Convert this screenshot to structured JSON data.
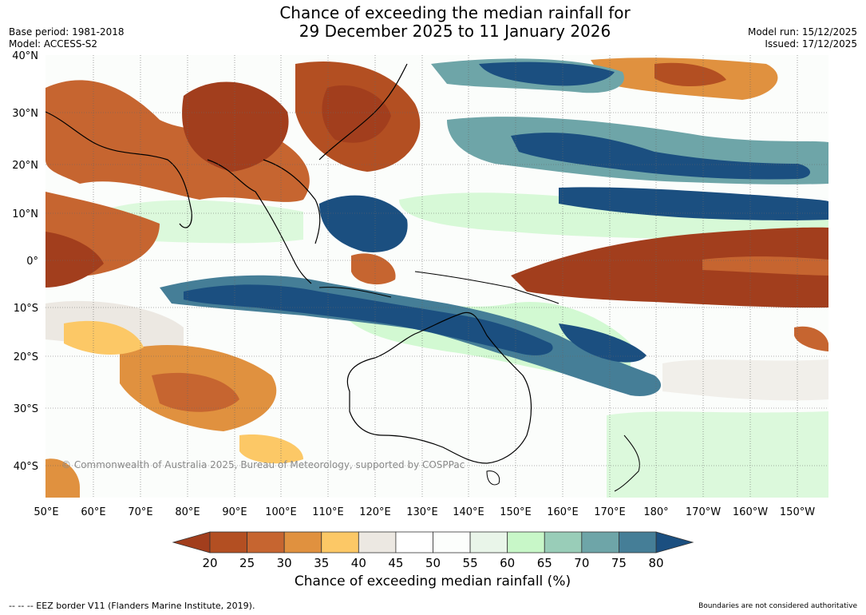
{
  "title_line1": "Chance of exceeding the median rainfall for",
  "title_line2": "29 December 2025 to 11 January 2026",
  "base_period": "Base period: 1981-2018",
  "model": "Model: ACCESS-S2",
  "model_run": "Model run: 15/12/2025",
  "issued": "Issued: 17/12/2025",
  "lat_labels": [
    "40°N",
    "30°N",
    "20°N",
    "10°N",
    "0°",
    "10°S",
    "20°S",
    "30°S",
    "40°S"
  ],
  "lon_labels": [
    "50°E",
    "60°E",
    "70°E",
    "80°E",
    "90°E",
    "100°E",
    "110°E",
    "120°E",
    "130°E",
    "140°E",
    "150°E",
    "160°E",
    "170°E",
    "180°",
    "170°W",
    "160°W",
    "150°W"
  ],
  "copyright": "© Commonwealth of Australia 2025, Bureau of Meteorology, supported by COSPPac",
  "colorbar": {
    "ticks": [
      "20",
      "25",
      "30",
      "35",
      "40",
      "45",
      "50",
      "55",
      "60",
      "65",
      "70",
      "75",
      "80"
    ],
    "colors": [
      "#a23e1d",
      "#b34f22",
      "#c66530",
      "#e0913f",
      "#fcc866",
      "#ece8e2",
      "#ffffff",
      "#fcfefc",
      "#e9f5e9",
      "#c8f7c8",
      "#99cdb8",
      "#6ea5a8",
      "#457e97",
      "#1b4f80"
    ],
    "title": "Chance of exceeding median rainfall (%)"
  },
  "footer_left": "--  --  -- EEZ border V11 (Flanders Marine Institute, 2019).",
  "footer_right": "Boundaries are not considered authoritative"
}
